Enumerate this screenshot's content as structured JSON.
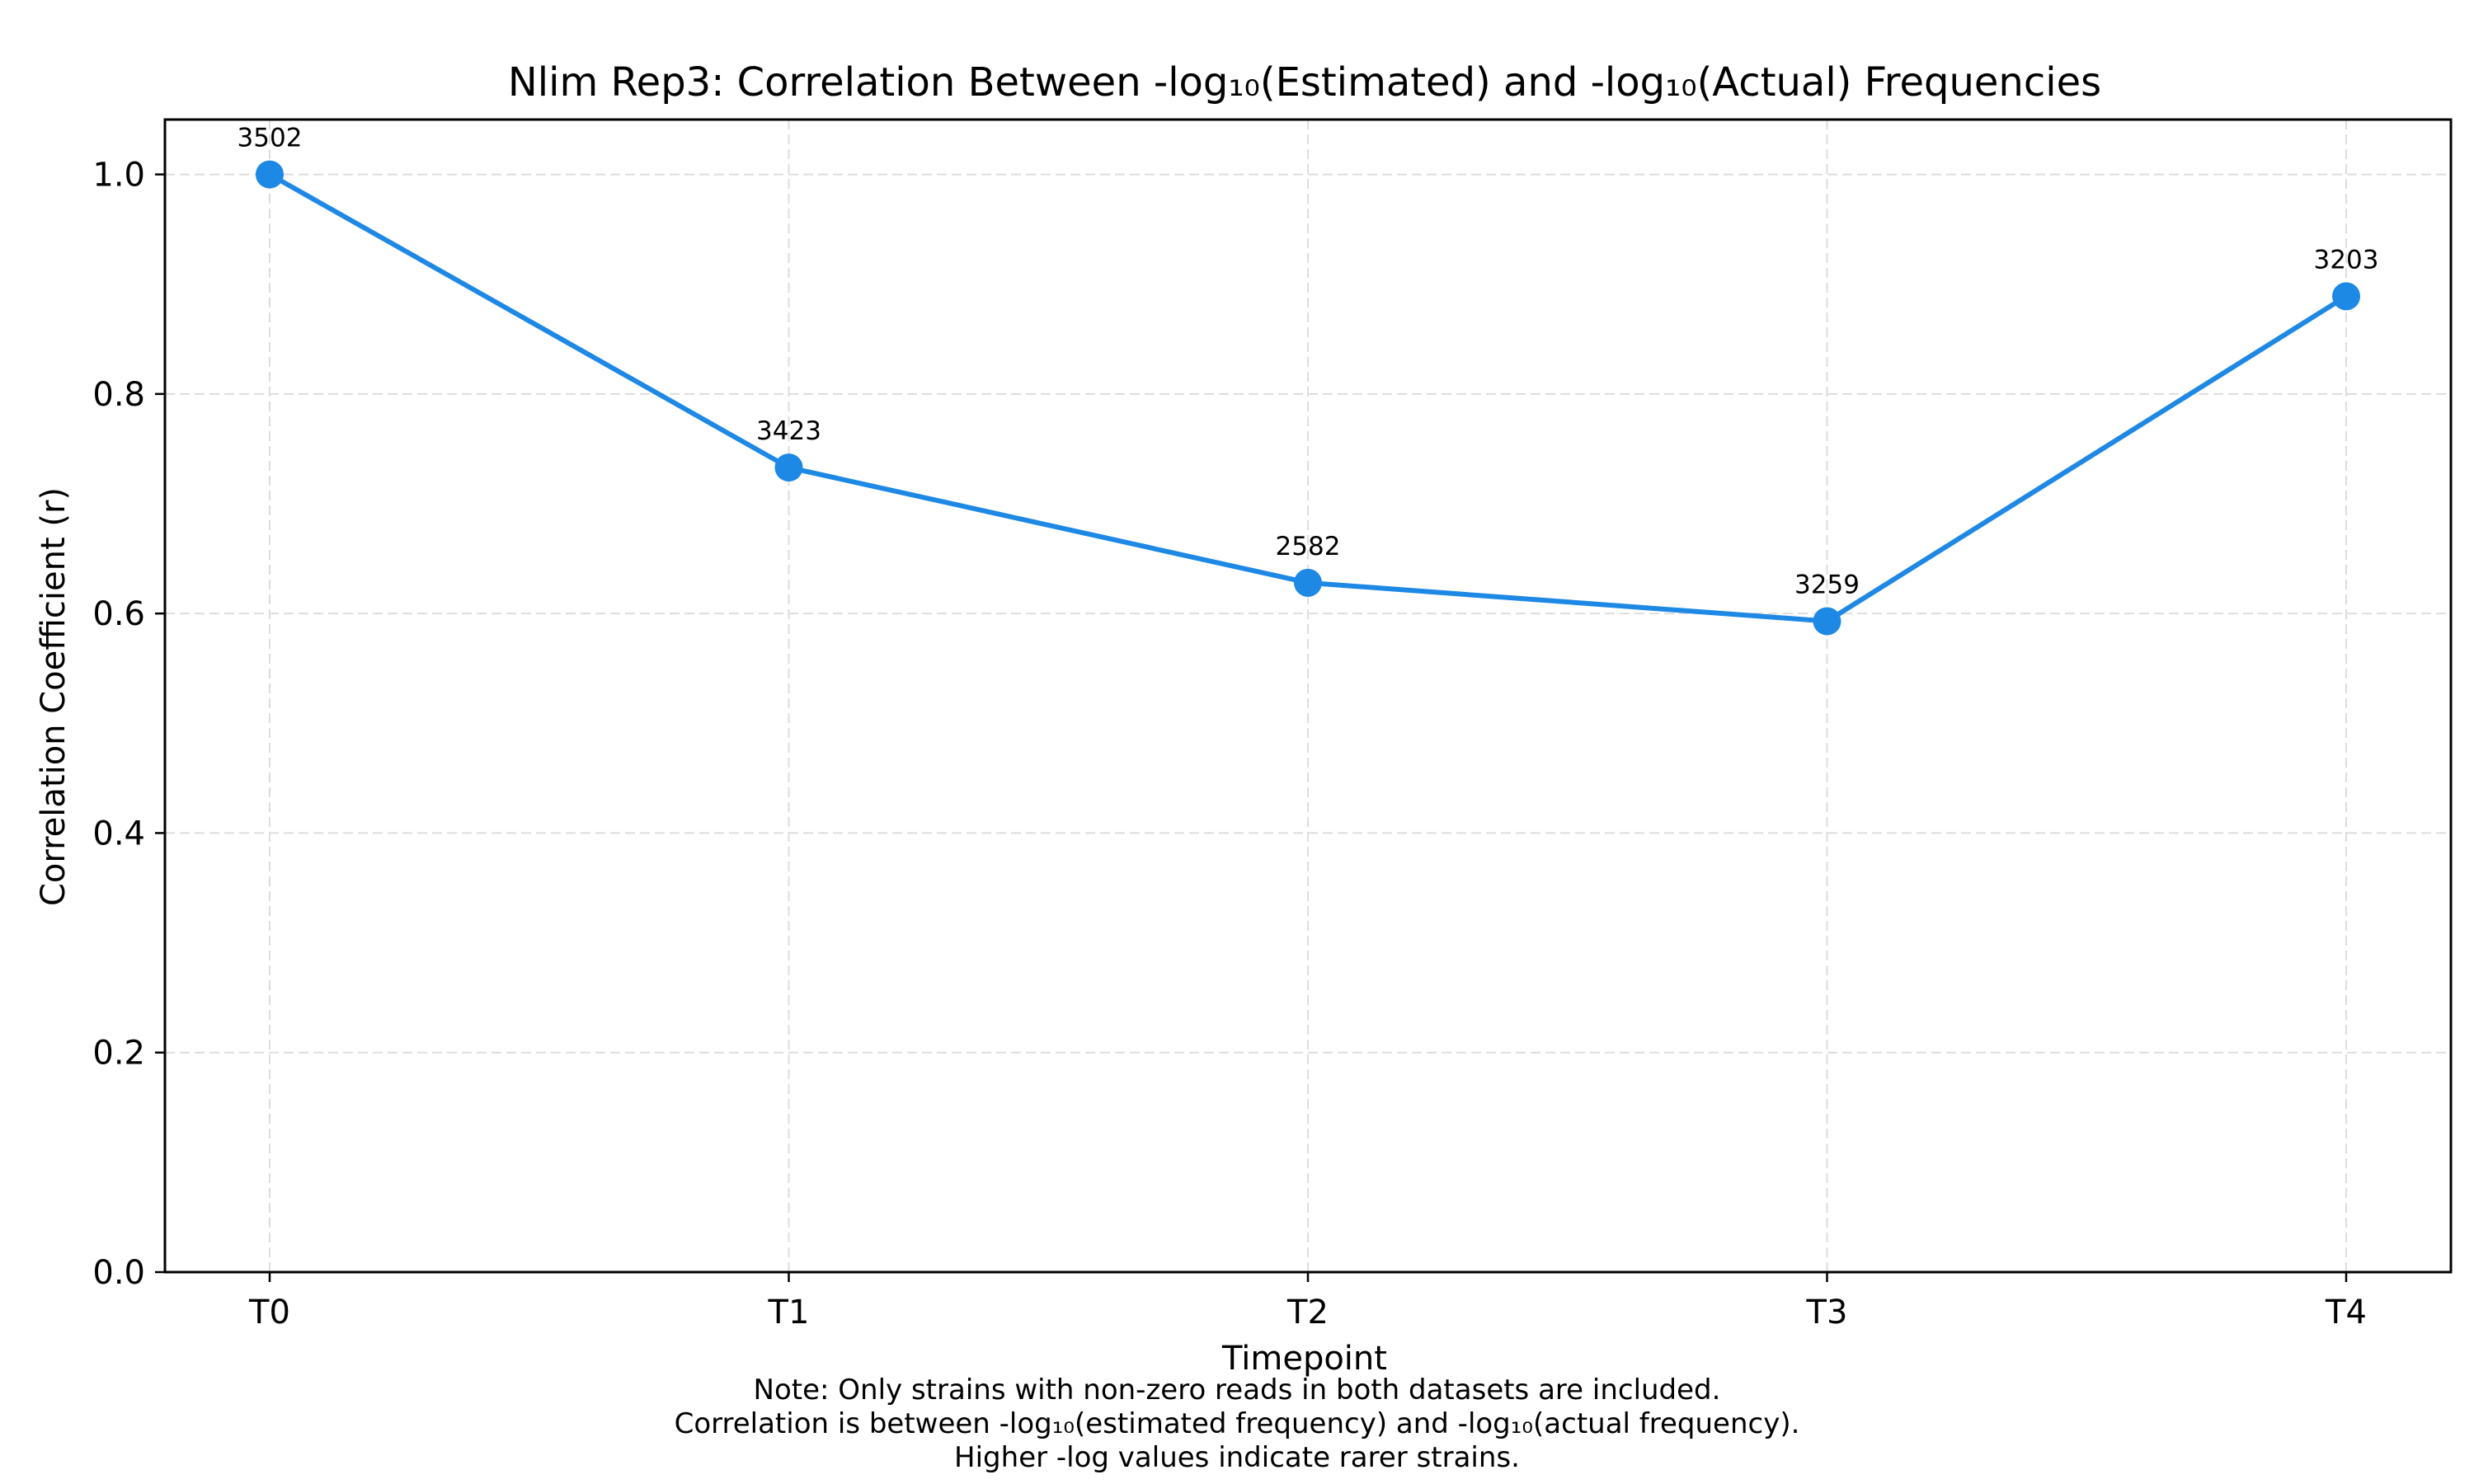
{
  "chart_data": {
    "type": "line",
    "title": "Nlim Rep3: Correlation Between -log₁₀(Estimated) and -log₁₀(Actual) Frequencies",
    "xlabel": "Timepoint",
    "ylabel": "Correlation Coefficient (r)",
    "categories": [
      "T0",
      "T1",
      "T2",
      "T3",
      "T4"
    ],
    "series": [
      {
        "values": [
          1.0,
          0.733,
          0.628,
          0.593,
          0.889
        ],
        "point_labels": [
          "3502",
          "3423",
          "2582",
          "3259",
          "3203"
        ]
      }
    ],
    "ylim": [
      0,
      1.05
    ],
    "yticks": [
      0.0,
      0.2,
      0.4,
      0.6,
      0.8,
      1.0
    ],
    "ytick_labels": [
      "0.0",
      "0.2",
      "0.4",
      "0.6",
      "0.8",
      "1.0"
    ],
    "grid": true,
    "line_color": "#1e88e5",
    "grid_color": "#dddddd"
  },
  "notes": [
    "Note: Only strains with non-zero reads in both datasets are included.",
    "Correlation is between -log₁₀(estimated frequency) and -log₁₀(actual frequency).",
    "Higher -log values indicate rarer strains."
  ]
}
